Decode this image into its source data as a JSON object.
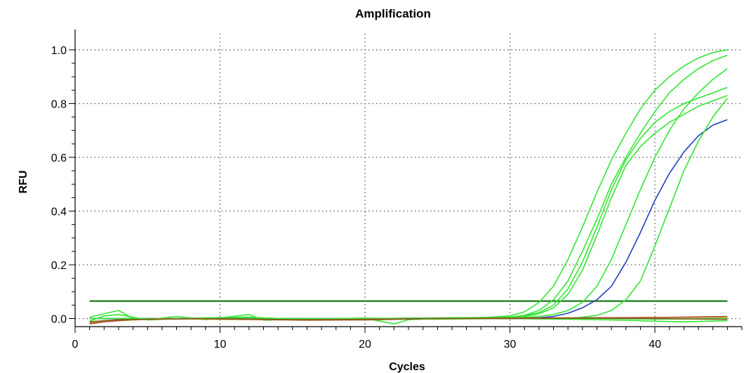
{
  "chart_data": {
    "type": "line",
    "title": "Amplification",
    "xlabel": "Cycles",
    "ylabel": "RFU",
    "xlim": [
      0,
      46
    ],
    "ylim": [
      -0.03,
      1.06
    ],
    "xticks": [
      0,
      10,
      20,
      30,
      40
    ],
    "yticks": [
      0.0,
      0.2,
      0.4,
      0.6,
      0.8,
      1.0
    ],
    "ytick_labels": [
      "0.0",
      "0.2",
      "0.4",
      "0.6",
      "0.8",
      "1.0"
    ],
    "grid": "dotted",
    "threshold": {
      "value": 0.065,
      "x_range": [
        1,
        45
      ],
      "color": "#1a7a1a"
    },
    "series": [
      {
        "color": "#33e633",
        "x": [
          1,
          10,
          20,
          28,
          30,
          31,
          32,
          33,
          34,
          35,
          36,
          37,
          38,
          39,
          40,
          41,
          42,
          43,
          44,
          45
        ],
        "y": [
          0.0,
          0.0,
          0.0,
          0.003,
          0.01,
          0.025,
          0.06,
          0.12,
          0.22,
          0.34,
          0.47,
          0.59,
          0.69,
          0.78,
          0.85,
          0.9,
          0.94,
          0.97,
          0.99,
          1.0
        ]
      },
      {
        "color": "#33e633",
        "x": [
          1,
          10,
          20,
          30,
          31,
          32,
          33,
          34,
          35,
          36,
          37,
          38,
          39,
          40,
          41,
          42,
          43,
          44,
          45
        ],
        "y": [
          0.0,
          0.0,
          0.0,
          0.005,
          0.012,
          0.03,
          0.07,
          0.14,
          0.25,
          0.37,
          0.5,
          0.6,
          0.69,
          0.77,
          0.84,
          0.89,
          0.93,
          0.96,
          0.98
        ]
      },
      {
        "color": "#33e633",
        "x": [
          1,
          10,
          20,
          30,
          31,
          32,
          33,
          34,
          35,
          36,
          37,
          38,
          39,
          40,
          41,
          42,
          43,
          44,
          45
        ],
        "y": [
          0.0,
          0.0,
          0.0,
          0.004,
          0.01,
          0.022,
          0.05,
          0.11,
          0.21,
          0.34,
          0.48,
          0.59,
          0.67,
          0.73,
          0.77,
          0.8,
          0.82,
          0.84,
          0.86
        ]
      },
      {
        "color": "#33e633",
        "x": [
          1,
          10,
          20,
          30,
          31,
          32,
          33,
          34,
          35,
          36,
          37,
          38,
          39,
          40,
          41,
          42,
          43,
          44,
          45
        ],
        "y": [
          0.0,
          0.0,
          0.0,
          0.003,
          0.008,
          0.018,
          0.04,
          0.09,
          0.18,
          0.31,
          0.45,
          0.57,
          0.64,
          0.69,
          0.73,
          0.76,
          0.79,
          0.81,
          0.83
        ]
      },
      {
        "color": "#33e633",
        "x": [
          1,
          10,
          20,
          30,
          32,
          33,
          34,
          35,
          36,
          37,
          38,
          39,
          40,
          41,
          42,
          43,
          44,
          45
        ],
        "y": [
          0.0,
          0.0,
          0.0,
          0.002,
          0.008,
          0.015,
          0.03,
          0.06,
          0.12,
          0.22,
          0.35,
          0.48,
          0.6,
          0.7,
          0.78,
          0.84,
          0.89,
          0.93
        ]
      },
      {
        "color": "#2040c0",
        "x": [
          1,
          10,
          20,
          30,
          32,
          33,
          34,
          35,
          36,
          37,
          38,
          39,
          40,
          41,
          42,
          43,
          44,
          45
        ],
        "y": [
          0.0,
          0.0,
          0.0,
          0.0,
          0.003,
          0.008,
          0.02,
          0.04,
          0.07,
          0.12,
          0.21,
          0.32,
          0.44,
          0.54,
          0.62,
          0.68,
          0.72,
          0.74
        ]
      },
      {
        "color": "#33e633",
        "x": [
          1,
          10,
          20,
          30,
          34,
          35,
          36,
          37,
          38,
          39,
          40,
          41,
          42,
          43,
          44,
          45
        ],
        "y": [
          0.0,
          0.0,
          0.0,
          0.0,
          0.0,
          0.005,
          0.012,
          0.03,
          0.07,
          0.14,
          0.27,
          0.41,
          0.55,
          0.66,
          0.75,
          0.82
        ]
      },
      {
        "color": "#33e633",
        "x": [
          1,
          2,
          3,
          4,
          5,
          7,
          9,
          12,
          13,
          15,
          20,
          22,
          23,
          25,
          30,
          35,
          38,
          40,
          42,
          45
        ],
        "y": [
          0.005,
          0.018,
          0.03,
          0.0,
          -0.004,
          0.008,
          -0.004,
          0.015,
          -0.006,
          -0.003,
          0.002,
          -0.02,
          -0.004,
          0.0,
          0.0,
          -0.003,
          -0.006,
          -0.01,
          -0.012,
          -0.008
        ]
      },
      {
        "color": "#33e633",
        "x": [
          1,
          2,
          3,
          5,
          8,
          12,
          16,
          20,
          25,
          30,
          35,
          40,
          45
        ],
        "y": [
          -0.01,
          0.01,
          0.015,
          -0.005,
          0.002,
          0.005,
          -0.004,
          0.002,
          -0.002,
          0.0,
          0.002,
          -0.002,
          0.0
        ]
      },
      {
        "color": "#c0a020",
        "x": [
          1,
          3,
          6,
          10,
          15,
          20,
          25,
          30,
          35,
          40,
          45
        ],
        "y": [
          -0.015,
          -0.008,
          0.0,
          -0.003,
          -0.004,
          -0.002,
          0.0,
          0.0,
          0.002,
          0.004,
          0.005
        ]
      },
      {
        "color": "#b0502a",
        "x": [
          1,
          2,
          4,
          8,
          12,
          16,
          20,
          25,
          30,
          35,
          40,
          45
        ],
        "y": [
          -0.02,
          -0.012,
          -0.004,
          0.0,
          -0.003,
          -0.006,
          -0.005,
          0.0,
          0.002,
          0.003,
          0.004,
          0.008
        ]
      },
      {
        "color": "#806020",
        "x": [
          1,
          3,
          6,
          10,
          15,
          20,
          25,
          30,
          35,
          40,
          45
        ],
        "y": [
          -0.012,
          -0.004,
          -0.002,
          0.0,
          -0.004,
          -0.003,
          0.0,
          0.0,
          0.001,
          0.0,
          -0.003
        ]
      }
    ]
  }
}
